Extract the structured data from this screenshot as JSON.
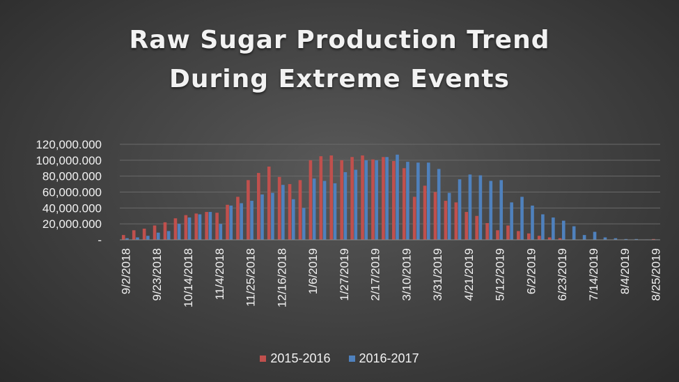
{
  "chart_data": {
    "type": "bar",
    "title_lines": [
      "Raw Sugar Production Trend",
      "During Extreme Events"
    ],
    "xlabel": "",
    "ylabel": "",
    "ylim": [
      0,
      120000000
    ],
    "yticks": [
      0,
      20000000,
      40000000,
      60000000,
      80000000,
      100000000,
      120000000
    ],
    "ytick_labels": [
      "-",
      "20,000.000",
      "40,000.000",
      "60,000.000",
      "80,000.000",
      "100,000.000",
      "120,000.000"
    ],
    "grid": true,
    "legend_position": "bottom",
    "categories": [
      "9/2/2018",
      "9/9/2018",
      "9/16/2018",
      "9/23/2018",
      "9/30/2018",
      "10/7/2018",
      "10/14/2018",
      "10/21/2018",
      "10/28/2018",
      "11/4/2018",
      "11/11/2018",
      "11/18/2018",
      "11/25/2018",
      "12/2/2018",
      "12/9/2018",
      "12/16/2018",
      "12/23/2018",
      "12/30/2018",
      "1/6/2019",
      "1/13/2019",
      "1/20/2019",
      "1/27/2019",
      "2/3/2019",
      "2/10/2019",
      "2/17/2019",
      "2/24/2019",
      "3/3/2019",
      "3/10/2019",
      "3/17/2019",
      "3/24/2019",
      "3/31/2019",
      "4/7/2019",
      "4/14/2019",
      "4/21/2019",
      "4/28/2019",
      "5/5/2019",
      "5/12/2019",
      "5/19/2019",
      "5/26/2019",
      "6/2/2019",
      "6/9/2019",
      "6/16/2019",
      "6/23/2019",
      "6/30/2019",
      "7/7/2019",
      "7/14/2019",
      "7/21/2019",
      "7/28/2019",
      "8/4/2019",
      "8/11/2019",
      "8/18/2019",
      "8/25/2019"
    ],
    "visible_tick_labels": [
      "9/2/2018",
      "9/23/2018",
      "10/14/2018",
      "11/4/2018",
      "11/25/2018",
      "12/16/2018",
      "1/6/2019",
      "1/27/2019",
      "2/17/2019",
      "3/10/2019",
      "3/31/2019",
      "4/21/2019",
      "5/12/2019",
      "6/2/2019",
      "6/23/2019",
      "7/14/2019",
      "8/4/2019",
      "8/25/2019"
    ],
    "series": [
      {
        "name": "2015-2016",
        "color": "#c0504d",
        "values": [
          6000000,
          12000000,
          14000000,
          18000000,
          22000000,
          27000000,
          31000000,
          33000000,
          35000000,
          34000000,
          44000000,
          54000000,
          75000000,
          84000000,
          92000000,
          79000000,
          70000000,
          75000000,
          100000000,
          105000000,
          106000000,
          100000000,
          104000000,
          106000000,
          101000000,
          104000000,
          99000000,
          90000000,
          54000000,
          68000000,
          60000000,
          49000000,
          47000000,
          35000000,
          30000000,
          21000000,
          12000000,
          18000000,
          11000000,
          8000000,
          5000000,
          3000000,
          2000000,
          0,
          0,
          0,
          0,
          0,
          0,
          0,
          0,
          1000000
        ]
      },
      {
        "name": "2016-2017",
        "color": "#4f81bd",
        "values": [
          2000000,
          3000000,
          5000000,
          9000000,
          11000000,
          20000000,
          28000000,
          32000000,
          35000000,
          20000000,
          43000000,
          46000000,
          49000000,
          57000000,
          59000000,
          69000000,
          51000000,
          40000000,
          77000000,
          74000000,
          71000000,
          85000000,
          88000000,
          100000000,
          100000000,
          104000000,
          107000000,
          98000000,
          97000000,
          97000000,
          89000000,
          59000000,
          76000000,
          82000000,
          81000000,
          74000000,
          75000000,
          47000000,
          54000000,
          43000000,
          32000000,
          28000000,
          24000000,
          17000000,
          6000000,
          10000000,
          3000000,
          2000000,
          1000000,
          1000000,
          500000,
          500000
        ]
      }
    ]
  }
}
